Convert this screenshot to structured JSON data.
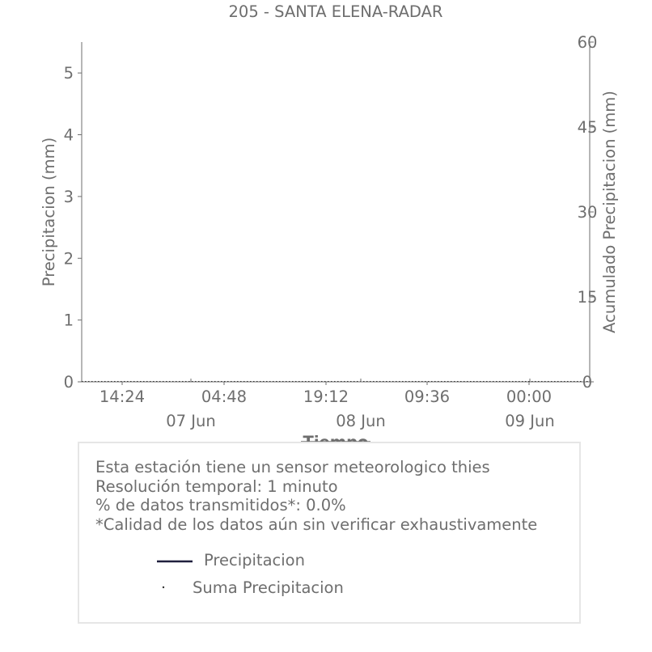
{
  "chart_data": {
    "type": "line",
    "title": "205 - SANTA ELENA-RADAR",
    "xlabel": "Tiempo",
    "ylabel": "Precipitacion (mm)",
    "y2label": "Acumulado Precipitacion (mm)",
    "ylim": [
      0,
      5.5
    ],
    "y2lim": [
      0,
      60
    ],
    "yticks": [
      "0",
      "1",
      "2",
      "3",
      "4",
      "5"
    ],
    "y2ticks": [
      "0",
      "15",
      "30",
      "45",
      "60"
    ],
    "x_time_ticks": [
      "14:24",
      "04:48",
      "19:12",
      "09:36",
      "00:00"
    ],
    "x_date_ticks": [
      "07 Jun",
      "08 Jun",
      "09 Jun"
    ],
    "series": [
      {
        "name": "Precipitacion",
        "color": "#1f1f3d",
        "values": []
      },
      {
        "name": "Suma Precipitacion",
        "color": "#333333",
        "values": []
      }
    ]
  },
  "info": {
    "lines": [
      "Esta estación tiene un sensor meteorologico thies",
      "Resolución temporal: 1 minuto",
      "% de datos transmitidos*: 0.0%",
      "*Calidad de los datos aún sin verificar exhaustivamente"
    ]
  },
  "legend": {
    "line_label": "Precipitacion",
    "dot_label": "Suma Precipitacion"
  }
}
